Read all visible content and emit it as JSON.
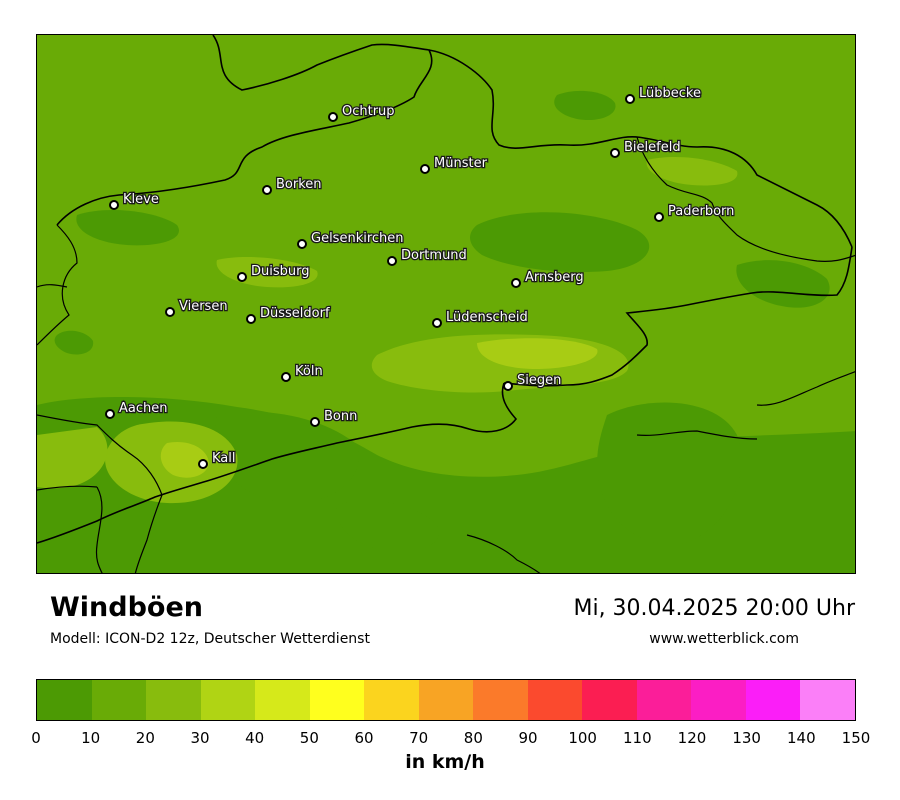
{
  "map": {
    "background_color": "#69ab06",
    "field_colors": {
      "dark": "#4c9a04",
      "mid": "#69ab06",
      "light": "#88bc0d",
      "lighter": "#a8cc14"
    },
    "border_color": "#000000",
    "cities": [
      {
        "name": "Lübbecke"
      },
      {
        "name": "Ochtrup"
      },
      {
        "name": "Bielefeld"
      },
      {
        "name": "Münster"
      },
      {
        "name": "Borken"
      },
      {
        "name": "Kleve"
      },
      {
        "name": "Paderborn"
      },
      {
        "name": "Gelsenkirchen"
      },
      {
        "name": "Dortmund"
      },
      {
        "name": "Duisburg"
      },
      {
        "name": "Arnsberg"
      },
      {
        "name": "Viersen"
      },
      {
        "name": "Düsseldorf"
      },
      {
        "name": "Lüdenscheid"
      },
      {
        "name": "Köln"
      },
      {
        "name": "Siegen"
      },
      {
        "name": "Aachen"
      },
      {
        "name": "Bonn"
      },
      {
        "name": "Kall"
      }
    ]
  },
  "title": "Windböen",
  "model": "Modell: ICON-D2 12z, Deutscher Wetterdienst",
  "datetime": "Mi, 30.04.2025 20:00 Uhr",
  "website": "www.wetterblick.com",
  "legend": {
    "unit": "in km/h",
    "ticks": [
      "0",
      "10",
      "20",
      "30",
      "40",
      "50",
      "60",
      "70",
      "80",
      "90",
      "100",
      "110",
      "120",
      "130",
      "140",
      "150"
    ],
    "colors": [
      "#4c9a04",
      "#69ab06",
      "#88bc0d",
      "#b0d414",
      "#d6e91a",
      "#ffff1e",
      "#fbd41e",
      "#f8a424",
      "#fb7a2a",
      "#fb4a2e",
      "#fb1e52",
      "#fb1e99",
      "#fb1ec4",
      "#fb1ef8",
      "#fb7ff8"
    ]
  }
}
